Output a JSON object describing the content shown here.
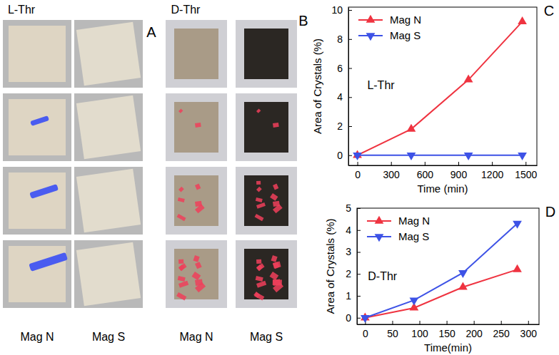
{
  "chart_data": [
    {
      "type": "line",
      "panel_label": "C",
      "annotation": "L-Thr",
      "x_label": "Time (min)",
      "y_label": "Area of Crystals (%)",
      "x": [
        0,
        480,
        990,
        1470
      ],
      "xlim": [
        -80,
        1600
      ],
      "xticks": [
        0,
        300,
        600,
        900,
        1200,
        1500
      ],
      "ylim": [
        -0.7,
        10.2
      ],
      "yticks": [
        0,
        2,
        4,
        6,
        8,
        10
      ],
      "legend": "upper left",
      "grid": false,
      "series": [
        {
          "name": "Mag N",
          "color": "#ef3340",
          "marker": "triangle-up",
          "values": [
            0,
            1.8,
            5.2,
            9.2
          ]
        },
        {
          "name": "Mag S",
          "color": "#3d52e6",
          "marker": "triangle-down",
          "values": [
            0,
            0,
            0,
            0
          ]
        }
      ]
    },
    {
      "type": "line",
      "panel_label": "D",
      "annotation": "D-Thr",
      "x_label": "Time(min)",
      "y_label": "Area of Crystals (%)",
      "x": [
        0,
        90,
        180,
        280
      ],
      "xlim": [
        -15,
        320
      ],
      "xticks": [
        0,
        50,
        100,
        150,
        200,
        250,
        300
      ],
      "ylim": [
        -0.3,
        5
      ],
      "yticks": [
        0,
        1,
        2,
        3,
        4,
        5
      ],
      "legend": "upper left",
      "grid": false,
      "series": [
        {
          "name": "Mag N",
          "color": "#ef3340",
          "marker": "triangle-up",
          "values": [
            0,
            0.45,
            1.4,
            2.2
          ]
        },
        {
          "name": "Mag S",
          "color": "#3d52e6",
          "marker": "triangle-down",
          "values": [
            0,
            0.8,
            2.05,
            4.3
          ]
        }
      ]
    }
  ],
  "photo_panels": [
    {
      "label": "A",
      "title": "L-Thr",
      "columns": [
        "Mag N",
        "Mag S"
      ]
    },
    {
      "label": "B",
      "title": "D-Thr",
      "columns": [
        "Mag N",
        "Mag S"
      ]
    }
  ]
}
